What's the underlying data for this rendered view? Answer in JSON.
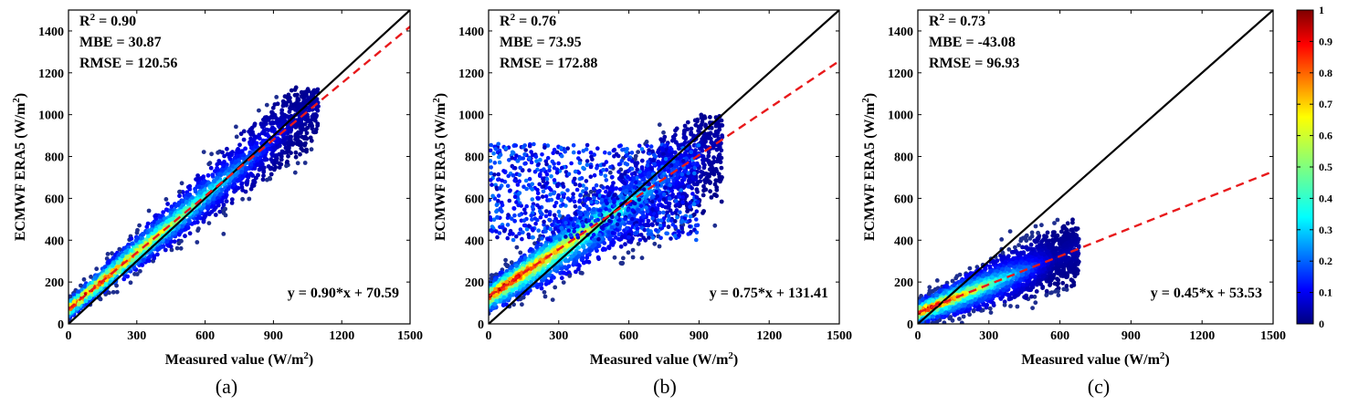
{
  "chart_data": [
    {
      "type": "scatter",
      "panel_label": "(a)",
      "xlabel_main": "Measured value (W/m",
      "xlabel_sup": "2",
      "xlabel_end": ")",
      "ylabel_main": "ECMWF ERA5 (W/m",
      "ylabel_sup": "2",
      "ylabel_end": ")",
      "xlim": [
        0,
        1500
      ],
      "ylim": [
        0,
        1500
      ],
      "xticks": [
        0,
        300,
        600,
        900,
        1200,
        1500
      ],
      "yticks": [
        0,
        200,
        400,
        600,
        800,
        1000,
        1200,
        1400
      ],
      "stats": {
        "r2_prefix": "R",
        "r2_sup": "2",
        "r2_value": " = 0.90",
        "mbe": "MBE = 30.87",
        "rmse": "RMSE = 120.56"
      },
      "equation": "y = 0.90*x + 70.59",
      "fit": {
        "slope": 0.9,
        "intercept": 70.59
      },
      "density": {
        "spread_low": 0.32,
        "spread_high": 0.34,
        "core_x_max": 950,
        "max_x": 1100,
        "max_y": 1130,
        "min_y": 10,
        "extra_cloud": null
      }
    },
    {
      "type": "scatter",
      "panel_label": "(b)",
      "xlabel_main": "Measured value (W/m",
      "xlabel_sup": "2",
      "xlabel_end": ")",
      "ylabel_main": "ECMWF ERA5 (W/m",
      "ylabel_sup": "2",
      "ylabel_end": ")",
      "xlim": [
        0,
        1500
      ],
      "ylim": [
        0,
        1500
      ],
      "xticks": [
        0,
        300,
        600,
        900,
        1200,
        1500
      ],
      "yticks": [
        0,
        200,
        400,
        600,
        800,
        1000,
        1200,
        1400
      ],
      "stats": {
        "r2_prefix": "R",
        "r2_sup": "2",
        "r2_value": " = 0.76",
        "mbe": "MBE = 73.95",
        "rmse": "RMSE = 172.88"
      },
      "equation": "y = 0.75*x + 131.41",
      "fit": {
        "slope": 0.75,
        "intercept": 131.41
      },
      "density": {
        "spread_low": 0.55,
        "spread_high": 0.45,
        "core_x_max": 900,
        "max_x": 1000,
        "max_y": 1000,
        "min_y": 0,
        "extra_cloud": {
          "x_max": 900,
          "y_min": 400,
          "y_max": 860
        }
      }
    },
    {
      "type": "scatter",
      "panel_label": "(c)",
      "xlabel_main": "Measured value (W/m",
      "xlabel_sup": "2",
      "xlabel_end": ")",
      "ylabel_main": "ECMWF ERA5 (W/m",
      "ylabel_sup": "2",
      "ylabel_end": ")",
      "xlim": [
        0,
        1500
      ],
      "ylim": [
        0,
        1500
      ],
      "xticks": [
        0,
        300,
        600,
        900,
        1200,
        1500
      ],
      "yticks": [
        0,
        200,
        400,
        600,
        800,
        1000,
        1200,
        1400
      ],
      "stats": {
        "r2_prefix": "R",
        "r2_sup": "2",
        "r2_value": " = 0.73",
        "mbe": "MBE = -43.08",
        "rmse": "RMSE = 96.93"
      },
      "equation": "y = 0.45*x + 53.53",
      "fit": {
        "slope": 0.45,
        "intercept": 53.53
      },
      "density": {
        "spread_low": 0.4,
        "spread_high": 0.4,
        "core_x_max": 550,
        "max_x": 680,
        "max_y": 500,
        "min_y": 0,
        "extra_cloud": null
      }
    }
  ],
  "colorbar": {
    "ticks": [
      "0",
      "0.1",
      "0.2",
      "0.3",
      "0.4",
      "0.5",
      "0.6",
      "0.7",
      "0.8",
      "0.9",
      "1"
    ],
    "range": [
      0,
      1
    ],
    "colormap": "jet"
  },
  "colors": {
    "identity_line": "#000000",
    "fit_line": "#e8191b",
    "scatter_sparse": "#1f2f8f"
  }
}
